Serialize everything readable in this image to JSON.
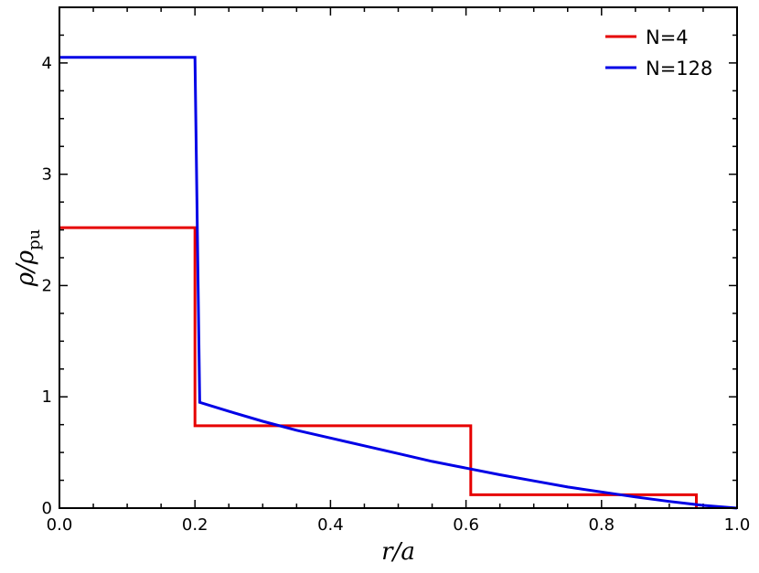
{
  "chart_data": {
    "type": "line",
    "title": "",
    "xlabel": "r/a",
    "ylabel": "ρ/ρpu",
    "xlabel_parts": {
      "main": "r/a"
    },
    "ylabel_parts": {
      "main": "ρ/ρ",
      "sub": "pu"
    },
    "xlim": [
      0.0,
      1.0
    ],
    "ylim": [
      0.0,
      4.5
    ],
    "x_ticks": [
      0.0,
      0.2,
      0.4,
      0.6,
      0.8,
      1.0
    ],
    "x_tick_labels": [
      "0.0",
      "0.2",
      "0.4",
      "0.6",
      "0.8",
      "1.0"
    ],
    "y_ticks": [
      0,
      1,
      2,
      3,
      4
    ],
    "y_tick_labels": [
      "0",
      "1",
      "2",
      "3",
      "4"
    ],
    "grid": false,
    "legend_position": "top-right",
    "series": [
      {
        "name": "N=4",
        "color": "#e60000",
        "points": [
          [
            0.0,
            2.52
          ],
          [
            0.2,
            2.52
          ],
          [
            0.2,
            0.74
          ],
          [
            0.607,
            0.74
          ],
          [
            0.607,
            0.12
          ],
          [
            0.94,
            0.12
          ],
          [
            0.94,
            0.0
          ]
        ]
      },
      {
        "name": "N=128",
        "color": "#0000e6",
        "points": [
          [
            0.0,
            4.05
          ],
          [
            0.2,
            4.05
          ],
          [
            0.207,
            0.95
          ],
          [
            0.25,
            0.87
          ],
          [
            0.3,
            0.78
          ],
          [
            0.35,
            0.7
          ],
          [
            0.4,
            0.63
          ],
          [
            0.45,
            0.56
          ],
          [
            0.5,
            0.49
          ],
          [
            0.55,
            0.42
          ],
          [
            0.6,
            0.36
          ],
          [
            0.65,
            0.3
          ],
          [
            0.7,
            0.245
          ],
          [
            0.75,
            0.19
          ],
          [
            0.8,
            0.145
          ],
          [
            0.85,
            0.1
          ],
          [
            0.9,
            0.06
          ],
          [
            0.95,
            0.025
          ],
          [
            1.0,
            0.0
          ]
        ]
      }
    ]
  }
}
